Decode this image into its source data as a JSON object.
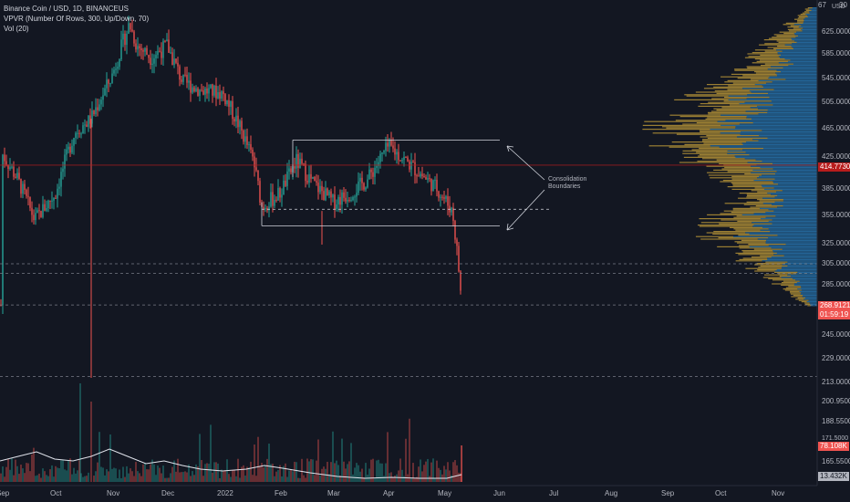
{
  "legend": {
    "symbol": "Binance Coin / USD, 1D, BINANCEUS",
    "vpvr": "VPVR (Number Of Rows, 300, Up/Down, 70)",
    "vol": "Vol (20)"
  },
  "price_scale": {
    "currency": "USD",
    "top_partial": "67",
    "top_partial2": "30"
  },
  "tags": {
    "poc_price": "414.7730",
    "last_price": "268.9121",
    "countdown": "01:59:19",
    "volume": "78.108K",
    "volume_ma": "13.432K",
    "partial_price": "171.5000"
  },
  "annotation": {
    "text": "Consolidation\nBoundaries"
  },
  "colors": {
    "bg": "#131722",
    "up": "#26a69a",
    "down": "#ef5350",
    "vp_up": "#2a7fbd",
    "vp_down": "#c8a23a",
    "poc": "#b71c1c"
  },
  "chart_data": {
    "type": "candlestick",
    "title": "Binance Coin / USD, 1D, BINANCEUS",
    "y_axis": {
      "scale": "log",
      "ticks": [
        625,
        585,
        545,
        505,
        465,
        425,
        385,
        355,
        325,
        305,
        285,
        245,
        229,
        213,
        200.95,
        188.55,
        165.55
      ],
      "tick_labels": [
        "625.0000",
        "585.0000",
        "545.0000",
        "505.0000",
        "465.0000",
        "425.0000",
        "385.0000",
        "355.0000",
        "325.0000",
        "305.0000",
        "285.0000",
        "245.0000",
        "229.0000",
        "213.0000",
        "200.9500",
        "188.5500",
        "165.5500"
      ]
    },
    "x_axis": {
      "ticks": [
        "Sep",
        "Oct",
        "Nov",
        "Dec",
        "2022",
        "Feb",
        "Mar",
        "Apr",
        "May",
        "Jun",
        "Jul",
        "Aug",
        "Sep",
        "Oct",
        "Nov"
      ]
    },
    "close_path": [
      {
        "t": "Sep",
        "v": 430
      },
      {
        "t": "Sep 10",
        "v": 400
      },
      {
        "t": "Sep 20",
        "v": 350
      },
      {
        "t": "Oct",
        "v": 380
      },
      {
        "t": "Oct 15",
        "v": 460
      },
      {
        "t": "Oct 25",
        "v": 480
      },
      {
        "t": "Nov",
        "v": 550
      },
      {
        "t": "Nov 10",
        "v": 640
      },
      {
        "t": "Nov 15",
        "v": 600
      },
      {
        "t": "Nov 25",
        "v": 580
      },
      {
        "t": "Dec",
        "v": 600
      },
      {
        "t": "Dec 10",
        "v": 540
      },
      {
        "t": "Dec 20",
        "v": 525
      },
      {
        "t": "2022",
        "v": 520
      },
      {
        "t": "Jan 10",
        "v": 470
      },
      {
        "t": "Jan 20",
        "v": 420
      },
      {
        "t": "Jan 25",
        "v": 365
      },
      {
        "t": "Feb",
        "v": 380
      },
      {
        "t": "Feb 10",
        "v": 420
      },
      {
        "t": "Feb 20",
        "v": 390
      },
      {
        "t": "Mar",
        "v": 370
      },
      {
        "t": "Mar 10",
        "v": 380
      },
      {
        "t": "Mar 20",
        "v": 395
      },
      {
        "t": "Apr",
        "v": 440
      },
      {
        "t": "Apr 10",
        "v": 420
      },
      {
        "t": "Apr 20",
        "v": 400
      },
      {
        "t": "Apr 28",
        "v": 385
      },
      {
        "t": "May 5",
        "v": 360
      },
      {
        "t": "May 8",
        "v": 310
      },
      {
        "t": "May 10",
        "v": 268.91
      }
    ],
    "levels": {
      "consolidation_upper": 449,
      "consolidation_lower": 344,
      "support_dashed": 362,
      "dashed_305": 305,
      "dashed_296": 296,
      "dashed_last": 268.91,
      "dashed_217": 217,
      "poc": 414.773
    },
    "volume_profile": {
      "rows": 300,
      "mode": "Up/Down",
      "value_area": 70
    }
  }
}
